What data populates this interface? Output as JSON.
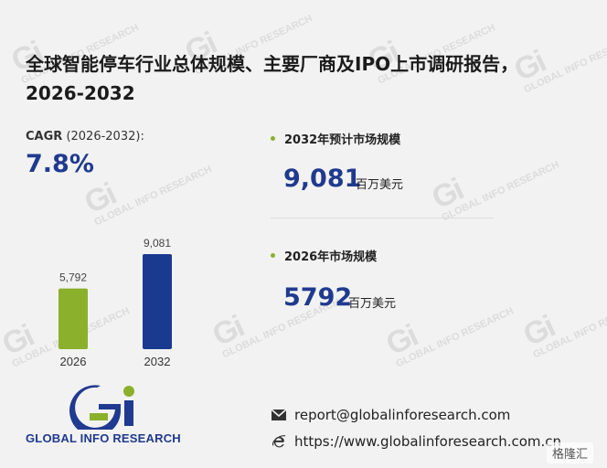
{
  "title": "全球智能停车行业总体规模、主要厂商及IPO上市调研报告，2026-2032",
  "cagr": {
    "label": "CAGR",
    "period": "(2026-2032):",
    "value": "7.8%"
  },
  "stats": [
    {
      "label": "2032年预计市场规模",
      "value": "9,081",
      "unit": "百万美元"
    },
    {
      "label": "2026年市场规模",
      "value": "5792",
      "unit": "百万美元"
    }
  ],
  "chart_data": {
    "type": "bar",
    "categories": [
      "2026",
      "2032"
    ],
    "values": [
      5792,
      9081
    ],
    "value_labels": [
      "5,792",
      "9,081"
    ],
    "colors": [
      "#8bb02c",
      "#1a3a8f"
    ],
    "ylim": [
      0,
      9081
    ]
  },
  "logo": {
    "text": "GLOBAL INFO RESEARCH"
  },
  "contact": {
    "email": "report@globalinforesearch.com",
    "website": "https://www.globalinforesearch.com.cn"
  },
  "watermark": {
    "text": "GLOBAL INFO RESEARCH",
    "mark": "Gi",
    "corner": "格隆汇"
  },
  "colors": {
    "accent": "#1f3a8f",
    "green": "#8bb02c",
    "background": "#f2f2f2"
  }
}
